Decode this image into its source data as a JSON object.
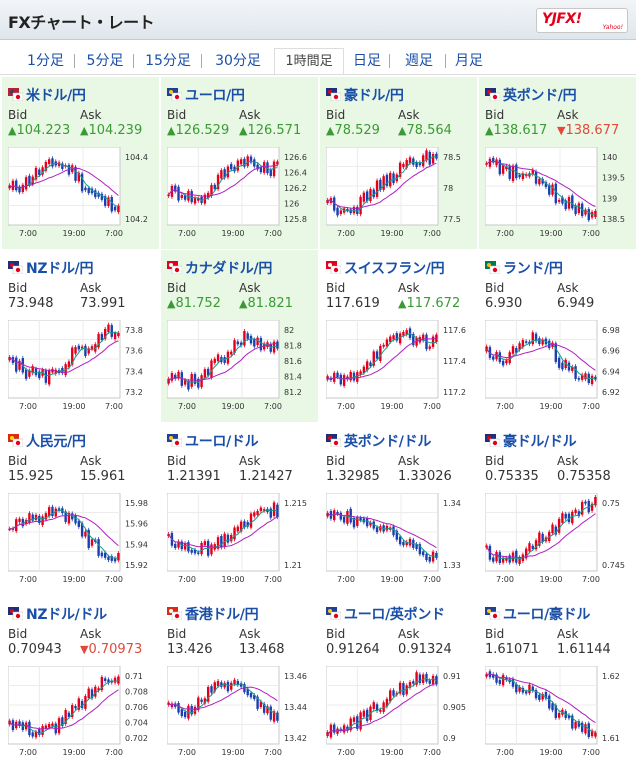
{
  "header": {
    "title": "FXチャート・レート",
    "logo_text": "YJFX!",
    "logo_sub": "Yahoo!"
  },
  "tabs": [
    {
      "label": "1分足",
      "active": false
    },
    {
      "label": "5分足",
      "active": false
    },
    {
      "label": "15分足",
      "active": false
    },
    {
      "label": "30分足",
      "active": false
    },
    {
      "label": "1時間足",
      "active": true
    },
    {
      "label": "日足",
      "active": false
    },
    {
      "label": "週足",
      "active": false
    },
    {
      "label": "月足",
      "active": false
    }
  ],
  "labels": {
    "bid": "Bid",
    "ask": "Ask"
  },
  "colors": {
    "link": "#1a4fa8",
    "up": "#3a9b34",
    "down": "#e04a3a",
    "highlight": "#e9f8e5",
    "ma": "#b020c0",
    "candle_up": "#e4001b",
    "candle_down": "#1a3fb0"
  },
  "pairs": [
    {
      "name": "米ドル/円",
      "flag": "us-jp-flag-icon",
      "highlight": true,
      "bid": "104.223",
      "bid_dir": "up",
      "ask": "104.239",
      "ask_dir": "up",
      "yticks": [
        "104.4",
        "104.2"
      ],
      "xticks": [
        "7:00",
        "19:00",
        "7:00"
      ],
      "trend": [
        0.45,
        0.55,
        0.7,
        0.8,
        0.7,
        0.45,
        0.3,
        0.25
      ]
    },
    {
      "name": "ユーロ/円",
      "flag": "eu-jp-flag-icon",
      "highlight": true,
      "bid": "126.529",
      "bid_dir": "up",
      "ask": "126.571",
      "ask_dir": "up",
      "yticks": [
        "126.6",
        "126.4",
        "126.2",
        "126",
        "125.8"
      ],
      "xticks": [
        "7:00",
        "19:00",
        "7:00"
      ],
      "trend": [
        0.45,
        0.4,
        0.3,
        0.55,
        0.75,
        0.85,
        0.7,
        0.75
      ]
    },
    {
      "name": "豪ドル/円",
      "flag": "au-jp-flag-icon",
      "highlight": true,
      "bid": "78.529",
      "bid_dir": "up",
      "ask": "78.564",
      "ask_dir": "up",
      "yticks": [
        "78.5",
        "78",
        "77.5"
      ],
      "xticks": [
        "7:00",
        "19:00",
        "7:00"
      ],
      "trend": [
        0.3,
        0.2,
        0.25,
        0.45,
        0.6,
        0.75,
        0.85,
        0.9
      ]
    },
    {
      "name": "英ポンド/円",
      "flag": "gb-jp-flag-icon",
      "highlight": true,
      "bid": "138.617",
      "bid_dir": "up",
      "ask": "138.677",
      "ask_dir": "down",
      "yticks": [
        "140",
        "139.5",
        "139",
        "138.5"
      ],
      "xticks": [
        "7:00",
        "19:00",
        "7:00"
      ],
      "trend": [
        0.85,
        0.7,
        0.65,
        0.6,
        0.45,
        0.3,
        0.2,
        0.15
      ]
    },
    {
      "name": "NZドル/円",
      "flag": "nz-jp-flag-icon",
      "highlight": false,
      "bid": "73.948",
      "bid_dir": "none",
      "ask": "73.991",
      "ask_dir": "none",
      "yticks": [
        "73.8",
        "73.6",
        "73.4",
        "73.2"
      ],
      "xticks": [
        "7:00",
        "19:00",
        "7:00"
      ],
      "trend": [
        0.5,
        0.35,
        0.25,
        0.3,
        0.55,
        0.65,
        0.8,
        0.9
      ]
    },
    {
      "name": "カナダドル/円",
      "flag": "ca-jp-flag-icon",
      "highlight": true,
      "bid": "81.752",
      "bid_dir": "up",
      "ask": "81.821",
      "ask_dir": "up",
      "yticks": [
        "82",
        "81.8",
        "81.6",
        "81.4",
        "81.2"
      ],
      "xticks": [
        "7:00",
        "19:00",
        "7:00"
      ],
      "trend": [
        0.3,
        0.2,
        0.25,
        0.45,
        0.6,
        0.8,
        0.7,
        0.65
      ]
    },
    {
      "name": "スイスフラン/円",
      "flag": "ch-jp-flag-icon",
      "highlight": false,
      "bid": "117.619",
      "bid_dir": "none",
      "ask": "117.672",
      "ask_dir": "up",
      "yticks": [
        "117.6",
        "117.4",
        "117.2"
      ],
      "xticks": [
        "7:00",
        "19:00",
        "7:00"
      ],
      "trend": [
        0.25,
        0.2,
        0.35,
        0.55,
        0.7,
        0.85,
        0.7,
        0.75
      ]
    },
    {
      "name": "ランド/円",
      "flag": "za-jp-flag-icon",
      "highlight": false,
      "bid": "6.930",
      "bid_dir": "none",
      "ask": "6.949",
      "ask_dir": "none",
      "yticks": [
        "6.98",
        "6.96",
        "6.94",
        "6.92"
      ],
      "xticks": [
        "7:00",
        "19:00",
        "7:00"
      ],
      "trend": [
        0.55,
        0.5,
        0.6,
        0.8,
        0.7,
        0.4,
        0.25,
        0.3
      ]
    },
    {
      "name": "人民元/円",
      "flag": "cn-jp-flag-icon",
      "highlight": false,
      "bid": "15.925",
      "bid_dir": "none",
      "ask": "15.961",
      "ask_dir": "none",
      "yticks": [
        "15.98",
        "15.96",
        "15.94",
        "15.92"
      ],
      "xticks": [
        "7:00",
        "19:00",
        "7:00"
      ],
      "trend": [
        0.55,
        0.65,
        0.7,
        0.8,
        0.65,
        0.4,
        0.25,
        0.2
      ]
    },
    {
      "name": "ユーロ/ドル",
      "flag": "eu-us-flag-icon",
      "highlight": false,
      "bid": "1.21391",
      "bid_dir": "none",
      "ask": "1.21427",
      "ask_dir": "none",
      "yticks": [
        "1.215",
        "1.21"
      ],
      "xticks": [
        "7:00",
        "19:00",
        "7:00"
      ],
      "trend": [
        0.4,
        0.3,
        0.25,
        0.35,
        0.45,
        0.6,
        0.75,
        0.8
      ]
    },
    {
      "name": "英ポンド/ドル",
      "flag": "gb-us-flag-icon",
      "highlight": false,
      "bid": "1.32985",
      "bid_dir": "none",
      "ask": "1.33026",
      "ask_dir": "none",
      "yticks": [
        "1.34",
        "1.33"
      ],
      "xticks": [
        "7:00",
        "19:00",
        "7:00"
      ],
      "trend": [
        0.75,
        0.7,
        0.65,
        0.6,
        0.5,
        0.35,
        0.25,
        0.2
      ]
    },
    {
      "name": "豪ドル/ドル",
      "flag": "au-us-flag-icon",
      "highlight": false,
      "bid": "0.75335",
      "bid_dir": "none",
      "ask": "0.75358",
      "ask_dir": "none",
      "yticks": [
        "0.75",
        "0.745"
      ],
      "xticks": [
        "7:00",
        "19:00",
        "7:00"
      ],
      "trend": [
        0.25,
        0.15,
        0.2,
        0.35,
        0.5,
        0.65,
        0.8,
        0.9
      ]
    },
    {
      "name": "NZドル/ドル",
      "flag": "nz-us-flag-icon",
      "highlight": false,
      "bid": "0.70943",
      "bid_dir": "none",
      "ask": "0.70973",
      "ask_dir": "down",
      "yticks": [
        "0.71",
        "0.708",
        "0.706",
        "0.704",
        "0.702"
      ],
      "xticks": [
        "7:00",
        "19:00",
        "7:00"
      ],
      "trend": [
        0.3,
        0.2,
        0.15,
        0.25,
        0.4,
        0.6,
        0.8,
        0.9
      ]
    },
    {
      "name": "香港ドル/円",
      "flag": "hk-jp-flag-icon",
      "highlight": false,
      "bid": "13.426",
      "bid_dir": "none",
      "ask": "13.468",
      "ask_dir": "none",
      "yticks": [
        "13.46",
        "13.44",
        "13.42"
      ],
      "xticks": [
        "7:00",
        "19:00",
        "7:00"
      ],
      "trend": [
        0.45,
        0.4,
        0.55,
        0.7,
        0.8,
        0.7,
        0.5,
        0.3
      ]
    },
    {
      "name": "ユーロ/英ポンド",
      "flag": "eu-gb-flag-icon",
      "highlight": false,
      "bid": "0.91264",
      "bid_dir": "none",
      "ask": "0.91324",
      "ask_dir": "none",
      "yticks": [
        "0.91",
        "0.905",
        "0.9"
      ],
      "xticks": [
        "7:00",
        "19:00",
        "7:00"
      ],
      "trend": [
        0.15,
        0.2,
        0.3,
        0.45,
        0.6,
        0.75,
        0.85,
        0.85
      ]
    },
    {
      "name": "ユーロ/豪ドル",
      "flag": "eu-au-flag-icon",
      "highlight": false,
      "bid": "1.61071",
      "bid_dir": "none",
      "ask": "1.61144",
      "ask_dir": "none",
      "yticks": [
        "1.62",
        "1.61"
      ],
      "xticks": [
        "7:00",
        "19:00",
        "7:00"
      ],
      "trend": [
        0.85,
        0.8,
        0.7,
        0.65,
        0.5,
        0.35,
        0.2,
        0.15
      ]
    }
  ]
}
